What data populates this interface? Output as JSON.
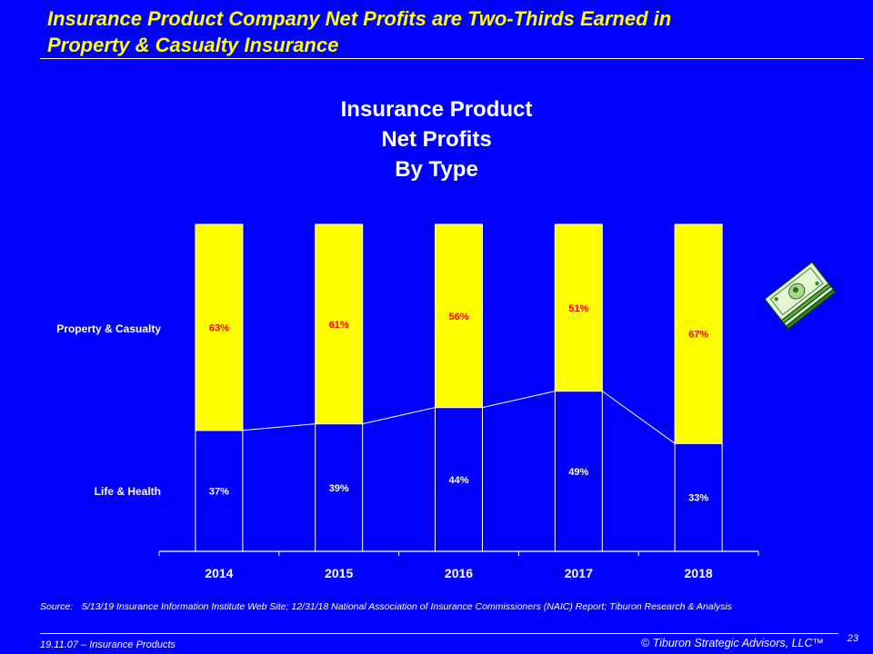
{
  "headline": {
    "line1": "Insurance Product Company Net Profits are Two-Thirds Earned in",
    "line2": "Property & Casualty Insurance"
  },
  "chart_data": {
    "type": "bar",
    "stacked": true,
    "normalized": true,
    "title": [
      "Insurance Product",
      "Net Profits",
      "By Type"
    ],
    "categories": [
      "2014",
      "2015",
      "2016",
      "2017",
      "2018"
    ],
    "series": [
      {
        "name": "Life & Health",
        "values": [
          37,
          39,
          44,
          49,
          33
        ],
        "labels": [
          "37%",
          "39%",
          "44%",
          "49%",
          "33%"
        ],
        "color": "#0000FF",
        "label_color": "#FFFFFF"
      },
      {
        "name": "Property & Casualty",
        "values": [
          63,
          61,
          56,
          51,
          67
        ],
        "labels": [
          "63%",
          "61%",
          "56%",
          "51%",
          "67%"
        ],
        "color": "#FFFF00",
        "label_color": "#FF0000"
      }
    ],
    "ylim": [
      0,
      100
    ],
    "grid": false,
    "legend": "left",
    "series_lines": true
  },
  "source": {
    "label": "Source:",
    "text": "5/13/19 Insurance Information Institute Web Site; 12/31/18 National Association of Insurance Commissioners (NAIC) Report; Tiburon Research & Analysis"
  },
  "footer": {
    "left": "19.11.07 – Insurance Products",
    "right": "© Tiburon Strategic Advisors, LLC™",
    "page": "23"
  },
  "icons": {
    "decor": "money-stack-icon"
  },
  "colors": {
    "background": "#0000FF",
    "accent": "#FFFF00",
    "label_red": "#FF0000",
    "text": "#FFFFFF"
  }
}
